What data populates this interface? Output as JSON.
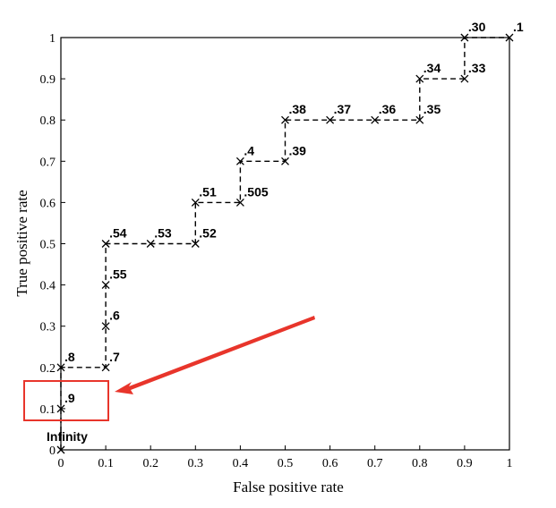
{
  "chart_data": {
    "type": "line",
    "xlabel": "False positive rate",
    "ylabel": "True positive rate",
    "x": [
      0,
      0,
      0,
      0.1,
      0.1,
      0.1,
      0.1,
      0.2,
      0.3,
      0.3,
      0.4,
      0.4,
      0.5,
      0.5,
      0.6,
      0.7,
      0.8,
      0.8,
      0.9,
      0.9,
      1
    ],
    "values": [
      0,
      0.1,
      0.2,
      0.2,
      0.3,
      0.4,
      0.5,
      0.5,
      0.5,
      0.6,
      0.6,
      0.7,
      0.7,
      0.8,
      0.8,
      0.8,
      0.8,
      0.9,
      0.9,
      1,
      1
    ],
    "point_labels": [
      "Infinity",
      ".9",
      ".8",
      ".7",
      ".6",
      ".55",
      ".54",
      ".53",
      ".52",
      ".51",
      ".505",
      ".4",
      ".39",
      ".38",
      ".37",
      ".36",
      ".35",
      ".34",
      ".33",
      ".30",
      ".1"
    ],
    "color": "#000000",
    "xlim": [
      0,
      1
    ],
    "ylim": [
      0,
      1
    ],
    "xticks": [
      0,
      0.1,
      0.2,
      0.3,
      0.4,
      0.5,
      0.6,
      0.7,
      0.8,
      0.9,
      1
    ],
    "yticks": [
      0,
      0.1,
      0.2,
      0.3,
      0.4,
      0.5,
      0.6,
      0.7,
      0.8,
      0.9,
      1
    ]
  }
}
